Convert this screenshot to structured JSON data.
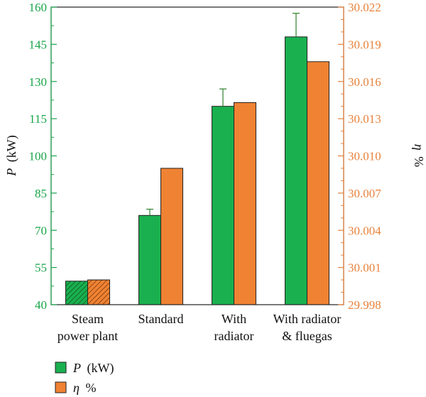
{
  "chart_data": {
    "type": "bar",
    "categories": [
      [
        "Steam",
        "power plant"
      ],
      [
        "Standard"
      ],
      [
        "With",
        "radiator"
      ],
      [
        "With radiator",
        "& fluegas"
      ]
    ],
    "series": [
      {
        "name_symbol": "P",
        "name_unit": "(kW)",
        "axis": "left",
        "color": "#1ab04f",
        "values": [
          49.5,
          76,
          120,
          148
        ],
        "error_plus": [
          0,
          2.5,
          7,
          9.5
        ],
        "hatched": [
          true,
          false,
          false,
          false
        ]
      },
      {
        "name_symbol": "η",
        "name_unit": "%",
        "axis": "right",
        "color": "#ef8233",
        "values": [
          30.0,
          30.009,
          30.0143,
          30.0176
        ],
        "hatched": [
          true,
          false,
          false,
          false
        ]
      }
    ],
    "ylabel_left_symbol": "P",
    "ylabel_left_unit": "(kW)",
    "ylabel_right_symbol": "η",
    "ylabel_right_unit": "%",
    "ylim_left": [
      40,
      160
    ],
    "yticks_left": [
      "40",
      "55",
      "70",
      "85",
      "100",
      "115",
      "130",
      "145",
      "160"
    ],
    "ylim_right": [
      29.998,
      30.022
    ],
    "yticks_right": [
      "29.998",
      "30.001",
      "30.004",
      "30.007",
      "30.010",
      "30.013",
      "30.016",
      "30.019",
      "30.022"
    ],
    "left_axis_color": "#1aa54a",
    "right_axis_color": "#e8823a",
    "legend_position": "bottom-left",
    "grid": false
  }
}
